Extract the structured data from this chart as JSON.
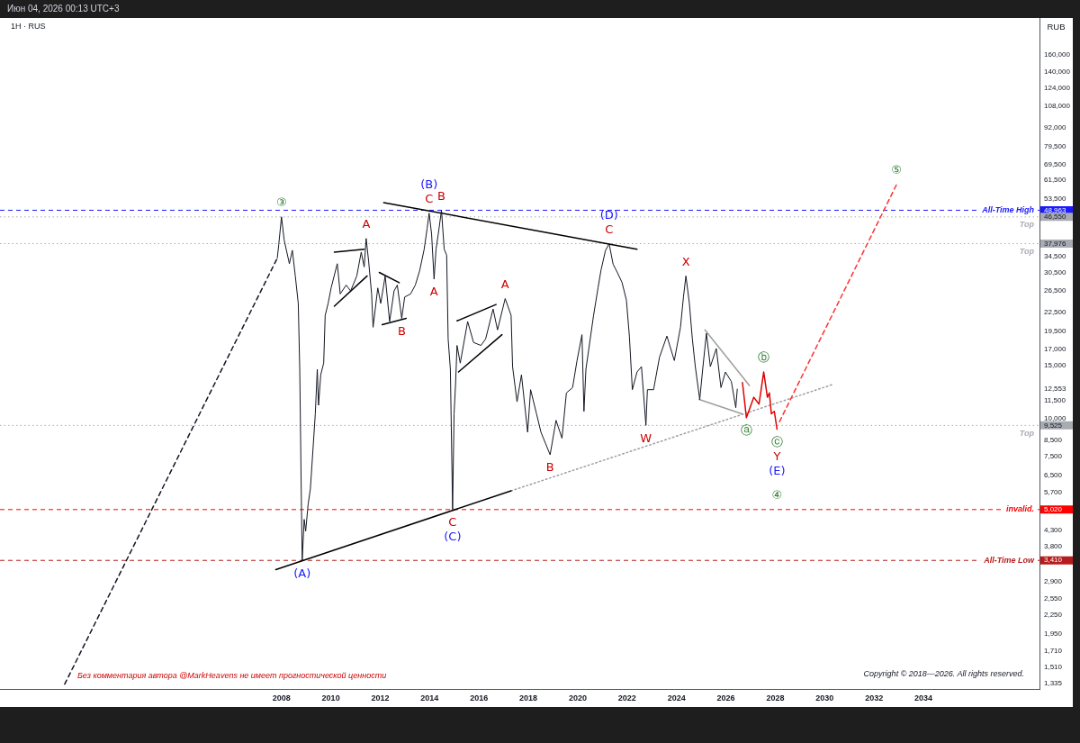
{
  "chart_data": {
    "type": "line",
    "title": "Июн 04, 2026 00:13 UTC+3",
    "subtitle": "1H · RUS",
    "ylabel": "RUB",
    "log": "y",
    "grid": false,
    "legend": false,
    "marker": "none",
    "xlim": [
      1996.6,
      2038.7
    ],
    "xticks": [
      2008,
      2010,
      2012,
      2014,
      2016,
      2018,
      2020,
      2022,
      2024,
      2026,
      2028,
      2030,
      2032,
      2034
    ],
    "ylim": [
      1282,
      211400
    ],
    "yticks": [
      {
        "value": 1335,
        "label": "1,335"
      },
      {
        "value": 1510,
        "label": "1,510"
      },
      {
        "value": 1710,
        "label": "1,710"
      },
      {
        "value": 1950,
        "label": "1,950"
      },
      {
        "value": 2250,
        "label": "2,250"
      },
      {
        "value": 2550,
        "label": "2,550"
      },
      {
        "value": 2900,
        "label": "2,900"
      },
      {
        "value": 3410,
        "label": "3,410"
      },
      {
        "value": 3800,
        "label": "3,800"
      },
      {
        "value": 4300,
        "label": "4,300"
      },
      {
        "value": 5020,
        "label": "5,020"
      },
      {
        "value": 5700,
        "label": "5,700"
      },
      {
        "value": 6500,
        "label": "6,500"
      },
      {
        "value": 7500,
        "label": "7,500"
      },
      {
        "value": 8500,
        "label": "8,500"
      },
      {
        "value": 9525,
        "label": "9,525"
      },
      {
        "value": 10000,
        "label": "10,000"
      },
      {
        "value": 11500,
        "label": "11,500"
      },
      {
        "value": 12553,
        "label": "12,553"
      },
      {
        "value": 15000,
        "label": "15,000"
      },
      {
        "value": 17000,
        "label": "17,000"
      },
      {
        "value": 19500,
        "label": "19,500"
      },
      {
        "value": 22500,
        "label": "22,500"
      },
      {
        "value": 26500,
        "label": "26,500"
      },
      {
        "value": 30500,
        "label": "30,500"
      },
      {
        "value": 34500,
        "label": "34,500"
      },
      {
        "value": 37976,
        "label": "37,976"
      },
      {
        "value": 46550,
        "label": "46,550"
      },
      {
        "value": 48963,
        "label": "48,963"
      },
      {
        "value": 53500,
        "label": "53,500"
      },
      {
        "value": 61500,
        "label": "61,500"
      },
      {
        "value": 69500,
        "label": "69,500"
      },
      {
        "value": 79500,
        "label": "79,500"
      },
      {
        "value": 92000,
        "label": "92,000"
      },
      {
        "value": 108000,
        "label": "108,000"
      },
      {
        "value": 124000,
        "label": "124,000"
      },
      {
        "value": 140000,
        "label": "140,000"
      },
      {
        "value": 160000,
        "label": "160,000"
      }
    ],
    "series": [
      {
        "color": "#131722",
        "x": [
          2007.83,
          2007.89,
          2008.0,
          2008.11,
          2008.32,
          2008.44,
          2008.56,
          2008.68,
          2008.74,
          2008.8,
          2008.84,
          2008.92,
          2008.98,
          2009.08,
          2009.17,
          2009.29,
          2009.37,
          2009.45,
          2009.5,
          2009.59,
          2009.71,
          2009.77,
          2009.89,
          2010.01,
          2010.26,
          2010.38,
          2010.62,
          2010.8,
          2011.05,
          2011.23,
          2011.35,
          2011.43,
          2011.53,
          2011.65,
          2011.71,
          2011.9,
          2012.02,
          2012.2,
          2012.38,
          2012.56,
          2012.69,
          2012.87,
          2012.99,
          2013.23,
          2013.42,
          2013.6,
          2013.78,
          2013.9,
          2013.98,
          2014.08,
          2014.18,
          2014.26,
          2014.35,
          2014.48,
          2014.59,
          2014.69,
          2014.75,
          2014.84,
          2014.93,
          2014.99,
          2015.05,
          2015.11,
          2015.24,
          2015.54,
          2015.78,
          2016.08,
          2016.27,
          2016.57,
          2016.75,
          2017.06,
          2017.3,
          2017.36,
          2017.54,
          2017.72,
          2017.97,
          2018.09,
          2018.33,
          2018.51,
          2018.88,
          2019.12,
          2019.36,
          2019.54,
          2019.79,
          2019.97,
          2020.17,
          2020.25,
          2020.33,
          2020.64,
          2020.82,
          2020.94,
          2021.12,
          2021.27,
          2021.43,
          2021.61,
          2021.79,
          2021.97,
          2022.09,
          2022.21,
          2022.4,
          2022.58,
          2022.76,
          2022.82,
          2023.07,
          2023.31,
          2023.61,
          2023.91,
          2024.16,
          2024.28,
          2024.38,
          2024.52,
          2024.64,
          2024.76,
          2024.94,
          2025.07,
          2025.21,
          2025.37,
          2025.61,
          2025.8,
          2025.98,
          2026.22,
          2026.4,
          2026.46
        ],
        "values": [
          34000,
          37700,
          46550,
          39000,
          32600,
          36100,
          29700,
          24100,
          14600,
          5870,
          3410,
          4660,
          4260,
          5230,
          5870,
          8270,
          10400,
          14600,
          11100,
          14000,
          15300,
          22000,
          24100,
          27100,
          32600,
          25900,
          27700,
          26500,
          29700,
          35600,
          31800,
          39500,
          33200,
          25900,
          20100,
          27100,
          24100,
          29700,
          21000,
          26500,
          27700,
          21500,
          25300,
          25900,
          27700,
          31000,
          36400,
          42700,
          47900,
          40800,
          29000,
          36400,
          40800,
          48963,
          36400,
          34800,
          18400,
          14600,
          5020,
          10400,
          13000,
          17500,
          15300,
          21000,
          17900,
          17500,
          18400,
          23100,
          19700,
          25000,
          22000,
          14900,
          11400,
          14000,
          9040,
          12500,
          10400,
          9040,
          7620,
          9900,
          8640,
          12200,
          12700,
          15600,
          19000,
          10600,
          14600,
          22000,
          27100,
          31000,
          36000,
          37976,
          32500,
          30400,
          28300,
          24700,
          18800,
          12500,
          14300,
          14900,
          9525,
          12500,
          12500,
          16000,
          18800,
          15600,
          20100,
          25300,
          29700,
          24100,
          18400,
          14900,
          11600,
          14900,
          19200,
          14900,
          17100,
          12700,
          14300,
          13300,
          10900,
          12553
        ]
      },
      {
        "color": "#e00000",
        "x": [
          2026.67,
          2026.83,
          2027.13,
          2027.34,
          2027.53,
          2027.68,
          2027.76,
          2027.84,
          2027.96,
          2028.07
        ],
        "values": [
          13200,
          10100,
          11800,
          11200,
          14300,
          11800,
          12200,
          10400,
          10600,
          9250
        ]
      },
      {
        "color": "#ff3030",
        "line_style": "dashed",
        "x": [
          2028.17,
          2032.91
        ],
        "values": [
          9800,
          59500
        ]
      },
      {
        "color": "#131722",
        "line_style": "dashed",
        "x": [
          1999.22,
          2007.83
        ],
        "values": [
          1330,
          34000
        ]
      },
      {
        "color": "#000000",
        "x": [
          2012.14,
          2022.4
        ],
        "values": [
          51900,
          36400
        ]
      },
      {
        "color": "#000000",
        "x": [
          2007.77,
          2017.3
        ],
        "values": [
          3180,
          5790
        ]
      },
      {
        "color": "#9e9e9e",
        "line_style": "dotted",
        "x": [
          2017.3,
          2030.32
        ],
        "values": [
          5790,
          13000
        ]
      },
      {
        "color": "#000000",
        "x": [
          2010.14,
          2011.35
        ],
        "values": [
          35600,
          36400
        ]
      },
      {
        "color": "#000000",
        "x": [
          2010.14,
          2011.47
        ],
        "values": [
          23600,
          29700
        ]
      },
      {
        "color": "#000000",
        "x": [
          2011.96,
          2012.77
        ],
        "values": [
          30500,
          28200
        ]
      },
      {
        "color": "#000000",
        "x": [
          2012.08,
          2013.05
        ],
        "values": [
          20500,
          21500
        ]
      },
      {
        "color": "#000000",
        "x": [
          2015.11,
          2016.69
        ],
        "values": [
          21100,
          23900
        ]
      },
      {
        "color": "#000000",
        "x": [
          2015.17,
          2016.93
        ],
        "values": [
          14300,
          19000
        ]
      },
      {
        "color": "#9e9e9e",
        "x": [
          2025.15,
          2026.95
        ],
        "values": [
          19700,
          12900
        ]
      },
      {
        "color": "#9e9e9e",
        "x": [
          2024.91,
          2026.65
        ],
        "values": [
          11600,
          10400
        ]
      }
    ],
    "ref_lines": [
      {
        "axis": "y",
        "value": 48963,
        "label": "All-Time High",
        "color": "#1a1aff",
        "line_style": "dashed"
      },
      {
        "axis": "y",
        "value": 46550,
        "label": "Top",
        "color": "#a9abb3",
        "line_style": "dotted"
      },
      {
        "axis": "y",
        "value": 37976,
        "label": "Top",
        "color": "#a9abb3",
        "line_style": "dotted"
      },
      {
        "axis": "y",
        "value": 9525,
        "label": "Top",
        "color": "#a9abb3",
        "line_style": "dotted"
      },
      {
        "axis": "y",
        "value": 5020,
        "label": "invalid.",
        "color": "#ff0000",
        "line_style": "dashed"
      },
      {
        "axis": "y",
        "value": 3410,
        "label": "All-Time Low",
        "color": "#b71c1c",
        "line_style": "dashed"
      }
    ],
    "annotations": [
      "Без комментария автора @MarkHeavens не имеет прогностической ценности",
      "Copyright © 2018—2026. All rights reserved.",
      {
        "text": "③",
        "x": 2008.0,
        "y": 46550
      },
      {
        "text": "(A)",
        "x": 2008.84,
        "y": 3410
      },
      {
        "text": "A",
        "x": 2011.43,
        "y": 39500
      },
      {
        "text": "B",
        "x": 2012.87,
        "y": 21500
      },
      {
        "text": "C",
        "x": 2013.98,
        "y": 47900
      },
      {
        "text": "(B)",
        "x": 2013.98,
        "y": 47900
      },
      {
        "text": "B",
        "x": 2014.48,
        "y": 48963
      },
      {
        "text": "A",
        "x": 2014.18,
        "y": 29000
      },
      {
        "text": "C",
        "x": 2014.93,
        "y": 5020
      },
      {
        "text": "(C)",
        "x": 2014.93,
        "y": 5020
      },
      {
        "text": "A",
        "x": 2017.06,
        "y": 25000
      },
      {
        "text": "B",
        "x": 2018.88,
        "y": 7620
      },
      {
        "text": "C",
        "x": 2021.27,
        "y": 37976
      },
      {
        "text": "(D)",
        "x": 2021.27,
        "y": 37976
      },
      {
        "text": "W",
        "x": 2022.76,
        "y": 9525
      },
      {
        "text": "X",
        "x": 2024.38,
        "y": 29700
      },
      {
        "text": "ⓐ",
        "x": 2026.83,
        "y": 10100
      },
      {
        "text": "ⓑ",
        "x": 2027.53,
        "y": 14300
      },
      {
        "text": "ⓒ",
        "x": 2028.07,
        "y": 9250
      },
      {
        "text": "Y",
        "x": 2028.07,
        "y": 9250
      },
      {
        "text": "(E)",
        "x": 2028.07,
        "y": 9250
      },
      {
        "text": "④",
        "x": 2028.07,
        "y": 5020
      },
      {
        "text": "⑤",
        "x": 2032.91,
        "y": 59500
      }
    ]
  }
}
